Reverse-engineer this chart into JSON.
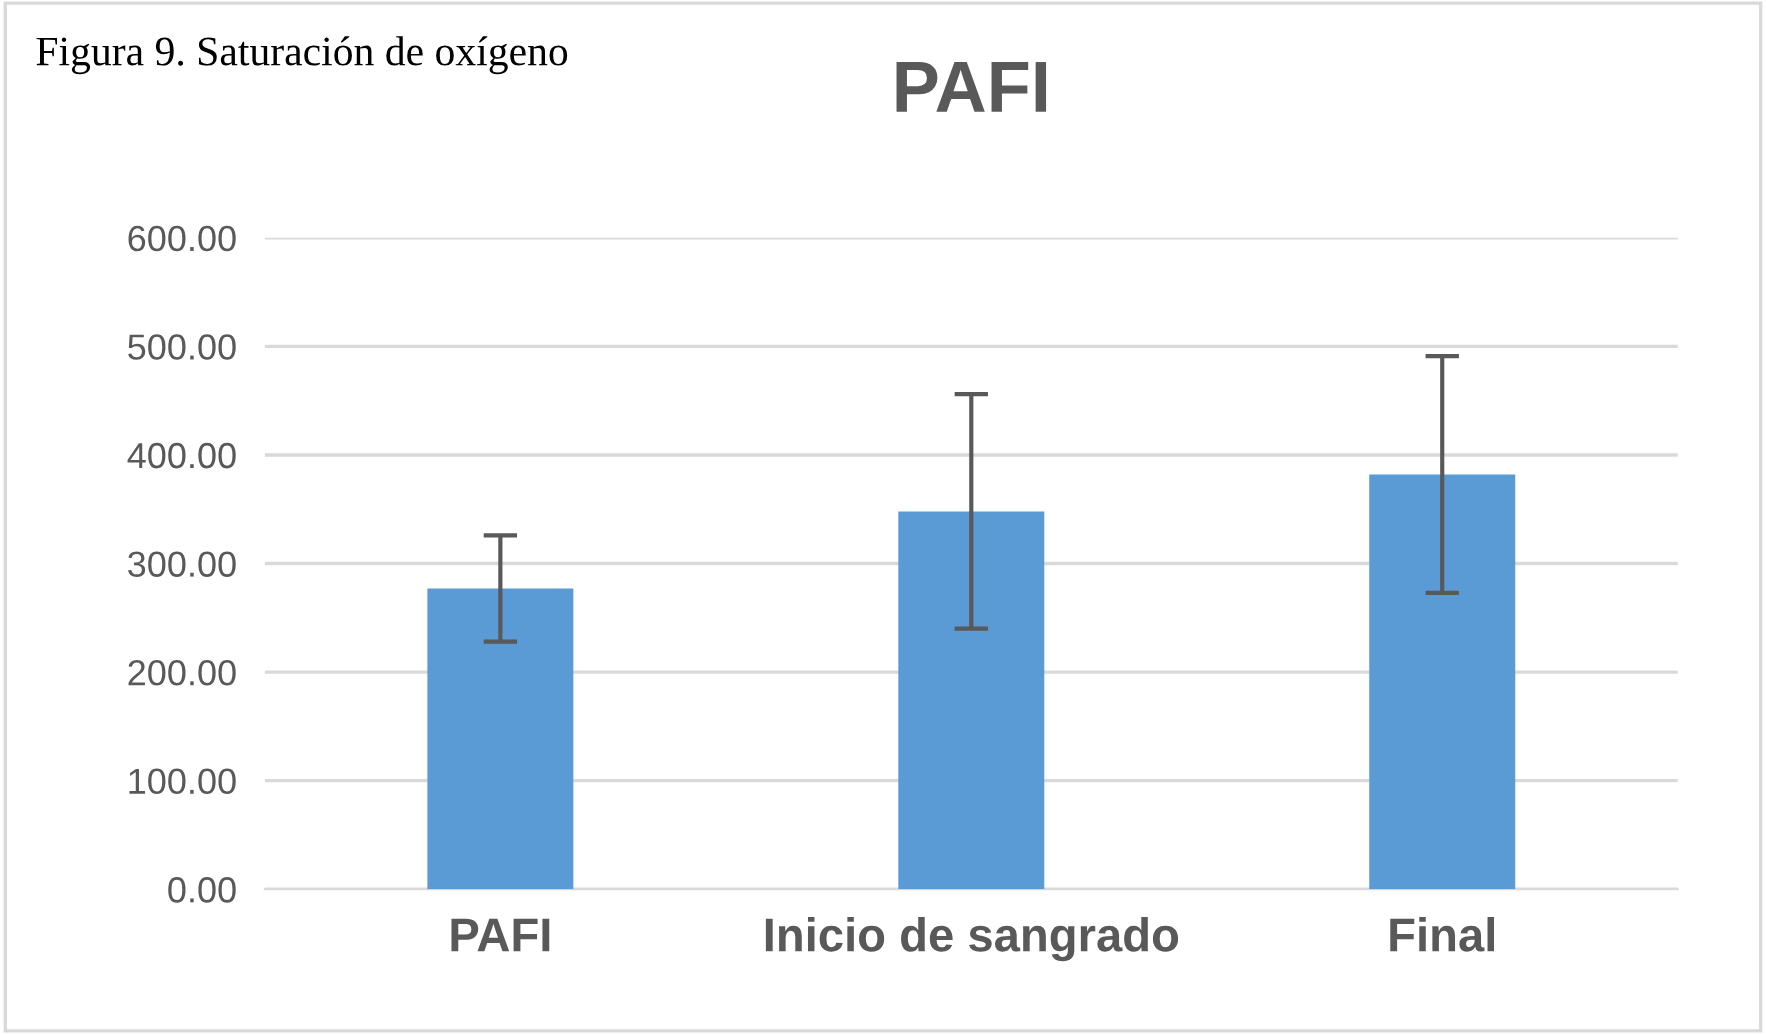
{
  "chart_data": {
    "type": "bar",
    "title": "PAFI",
    "categories": [
      "PAFI",
      "Inicio de sangrado",
      "Final"
    ],
    "series": [
      {
        "color": "#5b9bd5",
        "values": [
          277,
          348,
          382
        ],
        "errors": [
          49,
          108,
          109
        ]
      }
    ],
    "ylim": [
      0,
      600
    ],
    "yticks": [
      {
        "value": 0,
        "label": "0.00"
      },
      {
        "value": 100,
        "label": "100.00"
      },
      {
        "value": 200,
        "label": "200.00"
      },
      {
        "value": 300,
        "label": "300.00"
      },
      {
        "value": 400,
        "label": "400.00"
      },
      {
        "value": 500,
        "label": "500.00"
      },
      {
        "value": 600,
        "label": "600.00"
      }
    ],
    "grid": "y",
    "annotations": [
      "Figura 9. Saturación de oxígeno"
    ]
  }
}
